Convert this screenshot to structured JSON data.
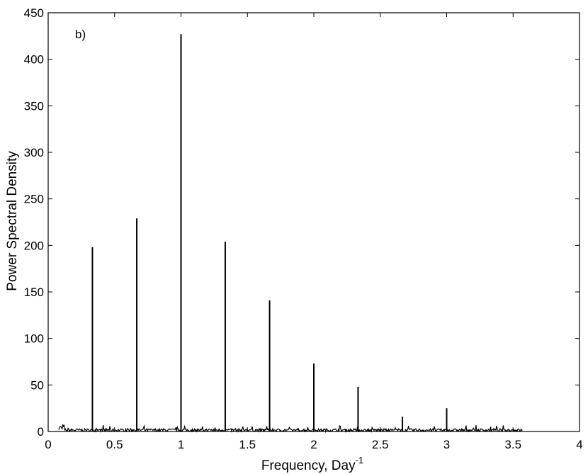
{
  "chart_data": {
    "type": "line",
    "panel_label": "b)",
    "xlabel": "Frequency, Day",
    "xlabel_superscript": "-1",
    "ylabel": "Power Spectral Density",
    "xlim": [
      0,
      4
    ],
    "ylim": [
      0,
      450
    ],
    "xticks": [
      0,
      0.5,
      1,
      1.5,
      2,
      2.5,
      3,
      3.5,
      4
    ],
    "xtick_labels": [
      "0",
      "0.5",
      "1",
      "1.5",
      "2",
      "2.5",
      "3",
      "3.5",
      "4"
    ],
    "yticks": [
      0,
      50,
      100,
      150,
      200,
      250,
      300,
      350,
      400,
      450
    ],
    "ytick_labels": [
      "0",
      "50",
      "100",
      "150",
      "200",
      "250",
      "300",
      "350",
      "400",
      "450"
    ],
    "grid": false,
    "x_range_of_data": [
      0.08,
      3.57
    ],
    "peaks": [
      {
        "x": 0.333,
        "y": 198
      },
      {
        "x": 0.667,
        "y": 229
      },
      {
        "x": 1.0,
        "y": 427
      },
      {
        "x": 1.333,
        "y": 204
      },
      {
        "x": 1.667,
        "y": 141
      },
      {
        "x": 2.0,
        "y": 73
      },
      {
        "x": 2.333,
        "y": 48
      },
      {
        "x": 2.667,
        "y": 16
      },
      {
        "x": 3.0,
        "y": 25
      }
    ],
    "noise_level": 5,
    "line_color": "#000000"
  }
}
